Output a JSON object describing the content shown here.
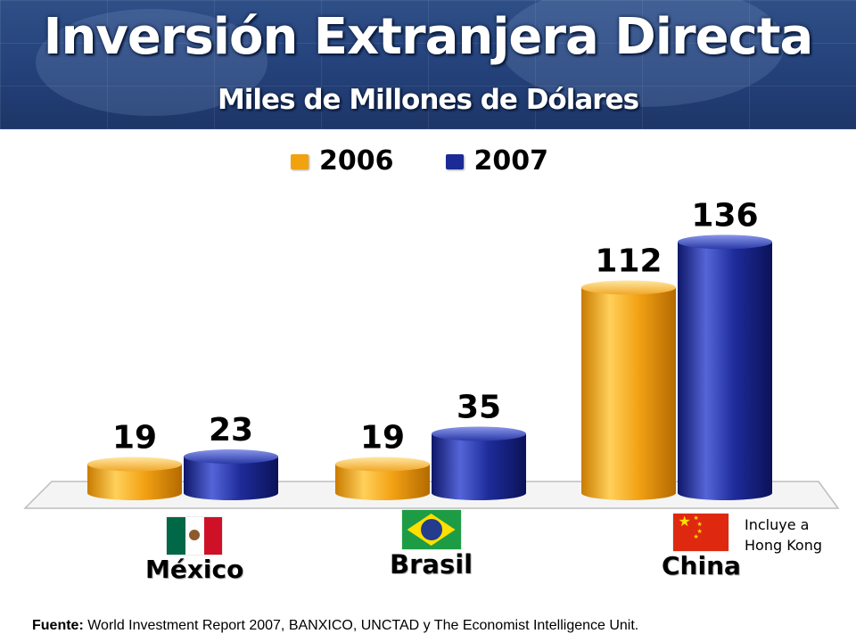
{
  "header": {
    "title": "Inversión Extranjera Directa",
    "subtitle": "Miles de Millones de Dólares"
  },
  "colors": {
    "series_2006": "#f2a20e",
    "series_2007": "#1b2a94",
    "banner": "#24417a"
  },
  "chart_data": {
    "type": "bar",
    "title": "Inversión Extranjera Directa",
    "subtitle": "Miles de Millones de Dólares",
    "categories": [
      "México",
      "Brasil",
      "China"
    ],
    "series": [
      {
        "name": "2006",
        "values": [
          19,
          19,
          112
        ]
      },
      {
        "name": "2007",
        "values": [
          23,
          35,
          136
        ]
      }
    ],
    "data_labels": [
      [
        "19",
        "23"
      ],
      [
        "19",
        "35"
      ],
      [
        "112",
        "136"
      ]
    ],
    "legend_position": "top",
    "grid": false,
    "ylim": [
      0,
      140
    ]
  },
  "countries": [
    {
      "name": "México",
      "flag": "mexico-flag-icon"
    },
    {
      "name": "Brasil",
      "flag": "brazil-flag-icon"
    },
    {
      "name": "China",
      "flag": "china-flag-icon"
    }
  ],
  "note": {
    "line1": "Incluye a",
    "line2": "Hong Kong"
  },
  "footer": {
    "label": "Fuente:",
    "text": " World Investment Report 2007, BANXICO, UNCTAD y The Economist Intelligence Unit."
  }
}
